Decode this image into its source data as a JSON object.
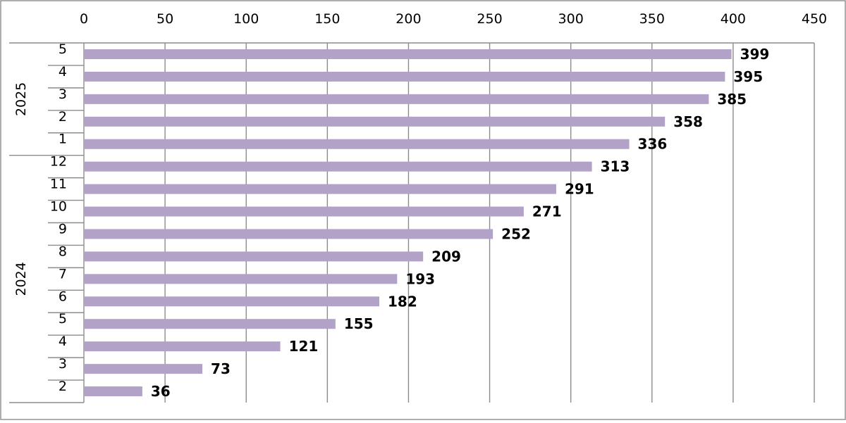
{
  "chart_data": {
    "type": "bar",
    "orientation": "horizontal",
    "x_axis_position": "top",
    "xlim": [
      0,
      450
    ],
    "x_ticks": [
      0,
      50,
      100,
      150,
      200,
      250,
      300,
      350,
      400,
      450
    ],
    "grid": true,
    "groups": [
      {
        "label": "2025",
        "months": [
          "5",
          "4",
          "3",
          "2",
          "1"
        ]
      },
      {
        "label": "2024",
        "months": [
          "12",
          "11",
          "10",
          "9",
          "8",
          "7",
          "6",
          "5",
          "4",
          "3",
          "2"
        ]
      }
    ],
    "categories": [
      "2025-5",
      "2025-4",
      "2025-3",
      "2025-2",
      "2025-1",
      "2024-12",
      "2024-11",
      "2024-10",
      "2024-9",
      "2024-8",
      "2024-7",
      "2024-6",
      "2024-5",
      "2024-4",
      "2024-3",
      "2024-2"
    ],
    "values": [
      399,
      395,
      385,
      358,
      336,
      313,
      291,
      271,
      252,
      209,
      193,
      182,
      155,
      121,
      73,
      36
    ],
    "bar_color": "#b3a2c7",
    "data_labels": true,
    "title": "",
    "xlabel": "",
    "ylabel": ""
  }
}
